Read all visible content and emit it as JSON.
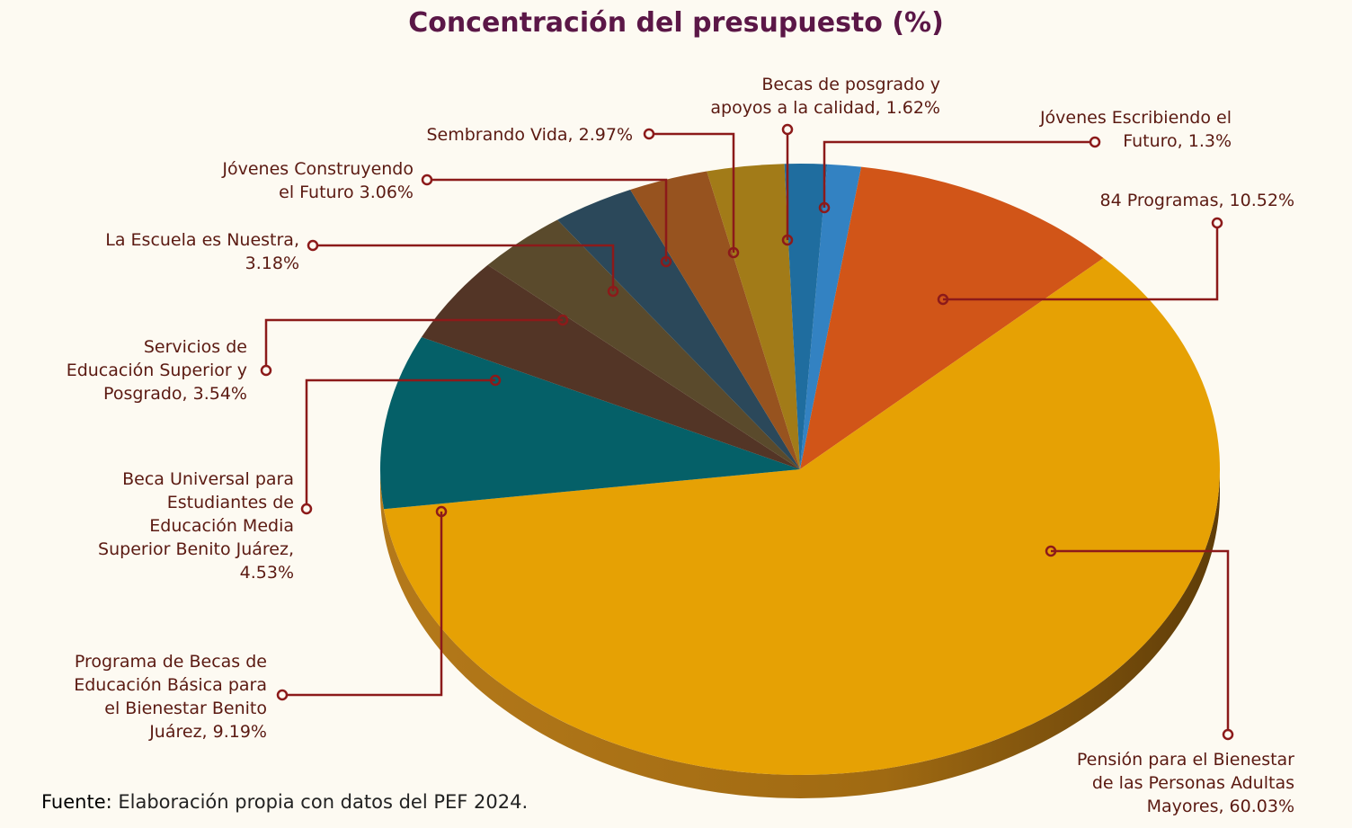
{
  "chart_data": {
    "type": "pie",
    "title": "Concentración del presupuesto (%)",
    "unit": "%",
    "slices": [
      {
        "label": "Jóvenes Escribiendo el\nFuturo, 1.3%",
        "value": 1.3,
        "color": "#3382c2"
      },
      {
        "label": "84 Programas, 10.52%",
        "value": 10.52,
        "color": "#d15518"
      },
      {
        "label": "Pensión para el Bienestar\nde las Personas Adultas\nMayores, 60.03%",
        "value": 60.03,
        "color": "#e6a104"
      },
      {
        "label": "Programa de Becas de\nEducación Básica para\nel Bienestar Benito\nJuárez, 9.19%",
        "value": 9.19,
        "color": "#056068"
      },
      {
        "label": "Beca Universal para\nEstudiantes de\nEducación Media\nSuperior Benito Juárez,\n4.53%",
        "value": 4.53,
        "color": "#533526"
      },
      {
        "label": "Servicios de\nEducación Superior y\nPosgrado, 3.54%",
        "value": 3.54,
        "color": "#5a4a2c"
      },
      {
        "label": "La Escuela es Nuestra,\n3.18%",
        "value": 3.18,
        "color": "#2b485a"
      },
      {
        "label": "Jóvenes Construyendo\nel Futuro 3.06%",
        "value": 3.06,
        "color": "#97531f"
      },
      {
        "label": "Sembrando Vida, 2.97%",
        "value": 2.97,
        "color": "#a27b18"
      },
      {
        "label": "Becas de posgrado y\napoyos a la calidad, 1.62%",
        "value": 1.62,
        "color": "#1f6d9f"
      }
    ]
  },
  "source": {
    "prefix": "Fuente:",
    "text": " Elaboración propia con datos del PEF 2024."
  }
}
